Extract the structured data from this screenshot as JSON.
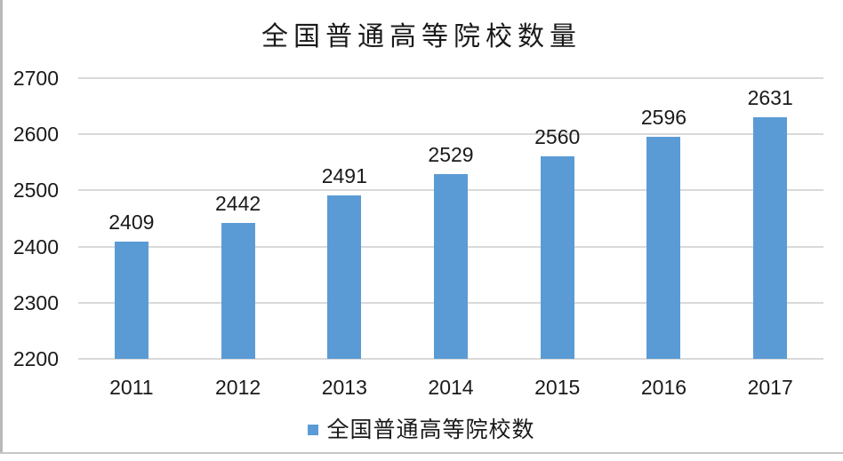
{
  "chart_data": {
    "type": "bar",
    "title": "全国普通高等院校数量",
    "categories": [
      "2011",
      "2012",
      "2013",
      "2014",
      "2015",
      "2016",
      "2017"
    ],
    "series": [
      {
        "name": "全国普通高等院校数",
        "values": [
          2409,
          2442,
          2491,
          2529,
          2560,
          2596,
          2631
        ]
      }
    ],
    "xlabel": "",
    "ylabel": "",
    "ylim": [
      2200,
      2700
    ],
    "ytick_interval": 100,
    "yticks": [
      2700,
      2600,
      2500,
      2400,
      2300,
      2200
    ],
    "grid": true,
    "data_labels": true,
    "legend_position": "bottom",
    "bar_color": "#5b9bd5",
    "gridline_color": "#d9d9d9",
    "text_color": "#1a1a1a",
    "background_color": "#ffffff"
  }
}
